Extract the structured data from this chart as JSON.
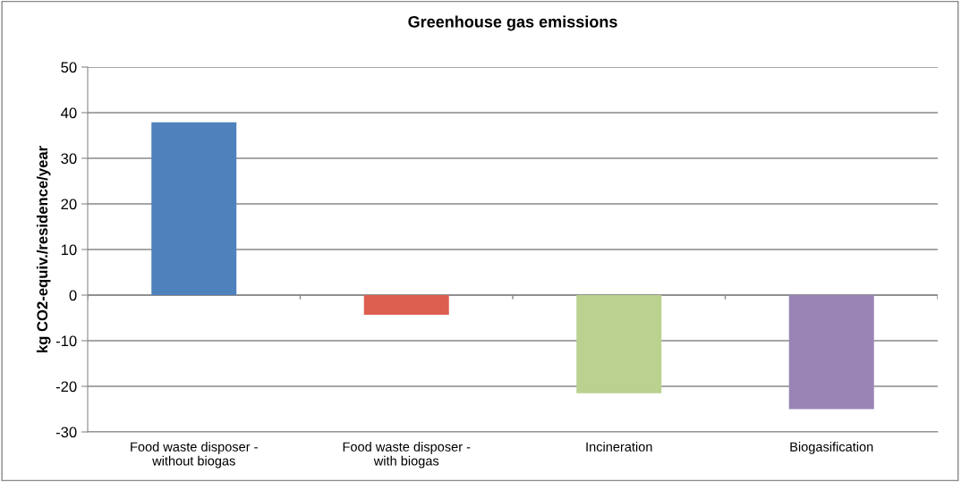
{
  "chart_data": {
    "type": "bar",
    "title": "Greenhouse gas emissions",
    "ylabel": "kg CO2-equiv./residence/year",
    "categories": [
      "Food waste disposer -\nwithout biogas",
      "Food waste disposer -\nwith biogas",
      "Incineration",
      "Biogasification"
    ],
    "values": [
      37.9,
      -4.3,
      -21.5,
      -25.0
    ],
    "colors": [
      "#4f81bd",
      "#dd5f4f",
      "#bbd18f",
      "#9a84b6"
    ],
    "ylim": [
      -30,
      50
    ],
    "yticks": [
      -30,
      -20,
      -10,
      0,
      10,
      20,
      30,
      40,
      50
    ],
    "grid": "y",
    "legend": false
  }
}
